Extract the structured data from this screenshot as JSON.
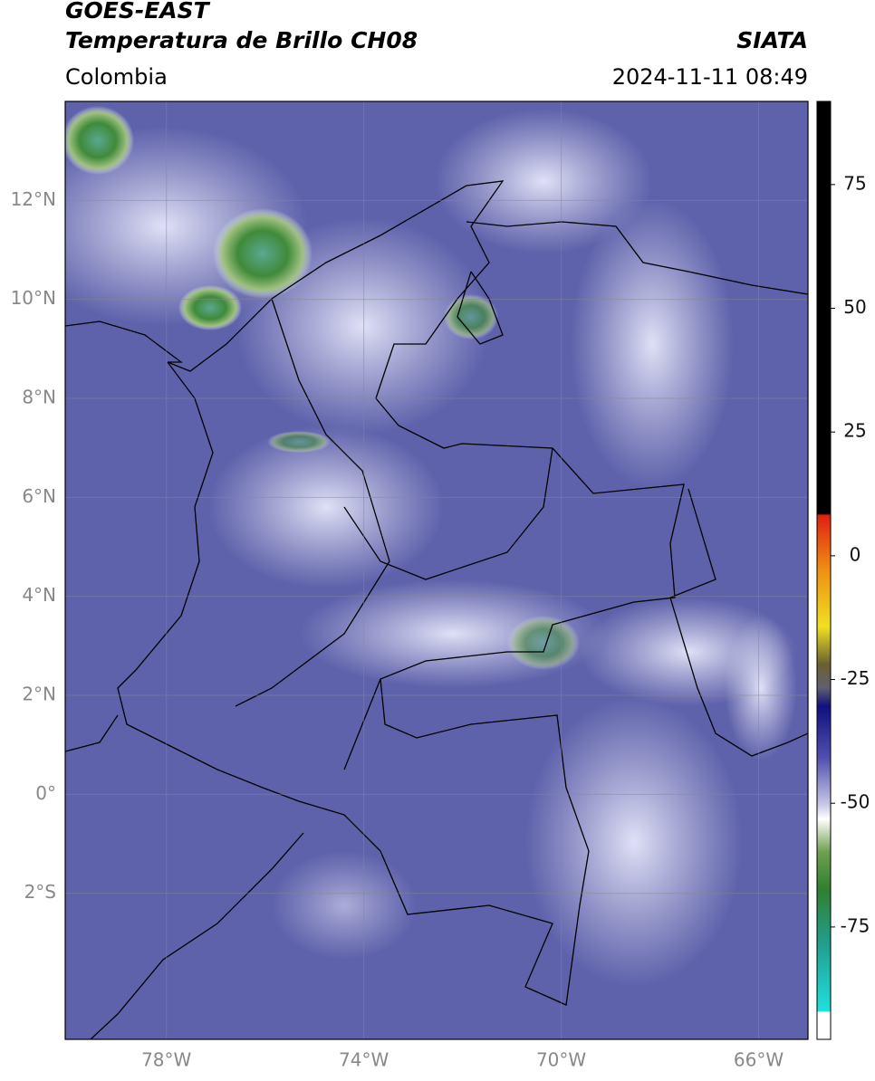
{
  "header": {
    "title": "GOES-EAST",
    "subtitle": "Temperatura de Brillo CH08",
    "region": "Colombia",
    "source": "SIATA",
    "timestamp": "2024-11-11 08:49"
  },
  "map": {
    "xlim": [
      -80.05,
      -65
    ],
    "ylim": [
      -4.95,
      14
    ],
    "xticks": [
      {
        "value": -78,
        "label": "78°W"
      },
      {
        "value": -74,
        "label": "74°W"
      },
      {
        "value": -70,
        "label": "70°W"
      },
      {
        "value": -66,
        "label": "66°W"
      }
    ],
    "yticks": [
      {
        "value": 12,
        "label": "12°N"
      },
      {
        "value": 10,
        "label": "10°N"
      },
      {
        "value": 8,
        "label": "8°N"
      },
      {
        "value": 6,
        "label": "6°N"
      },
      {
        "value": 4,
        "label": "4°N"
      },
      {
        "value": 2,
        "label": "2°N"
      },
      {
        "value": 0,
        "label": "0°"
      },
      {
        "value": -2,
        "label": "2°S"
      }
    ],
    "grid": true
  },
  "colorbar": {
    "lim": [
      -97.7,
      91.8
    ],
    "ticks": [
      75,
      50,
      25,
      0,
      -25,
      -50,
      -75
    ]
  }
}
